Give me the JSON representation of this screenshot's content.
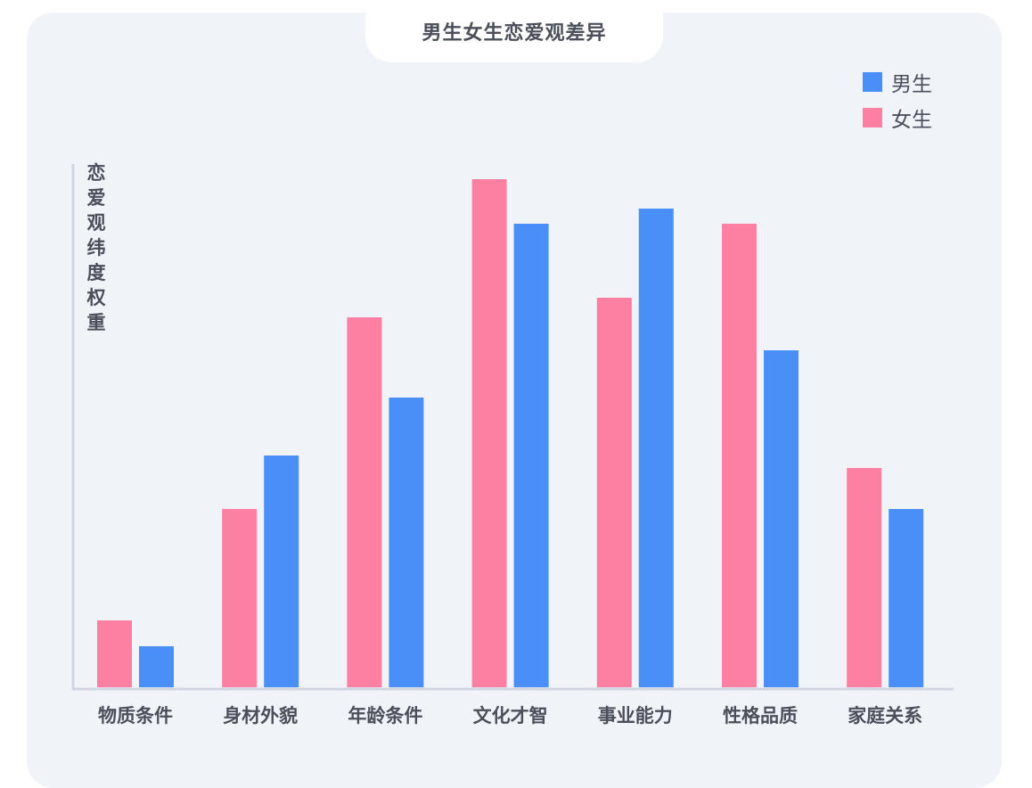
{
  "chart_data": {
    "type": "bar",
    "title": "男生女生恋爱观差异",
    "ylabel": "恋爱观纬度权重",
    "xlabel": "",
    "categories": [
      "物质条件",
      "身材外貌",
      "年龄条件",
      "文化才智",
      "事业能力",
      "性格品质",
      "家庭关系"
    ],
    "series": [
      {
        "name": "女生",
        "color": "#fd7fa1",
        "values": [
          75,
          200,
          415,
          570,
          437,
          520,
          246
        ]
      },
      {
        "name": "男生",
        "color": "#4a8ff7",
        "values": [
          46,
          260,
          325,
          520,
          537,
          378,
          200
        ]
      }
    ],
    "ylim": [
      0,
      590
    ],
    "grid": false,
    "legend": "top-right",
    "legend_order": [
      "男生",
      "女生"
    ]
  }
}
